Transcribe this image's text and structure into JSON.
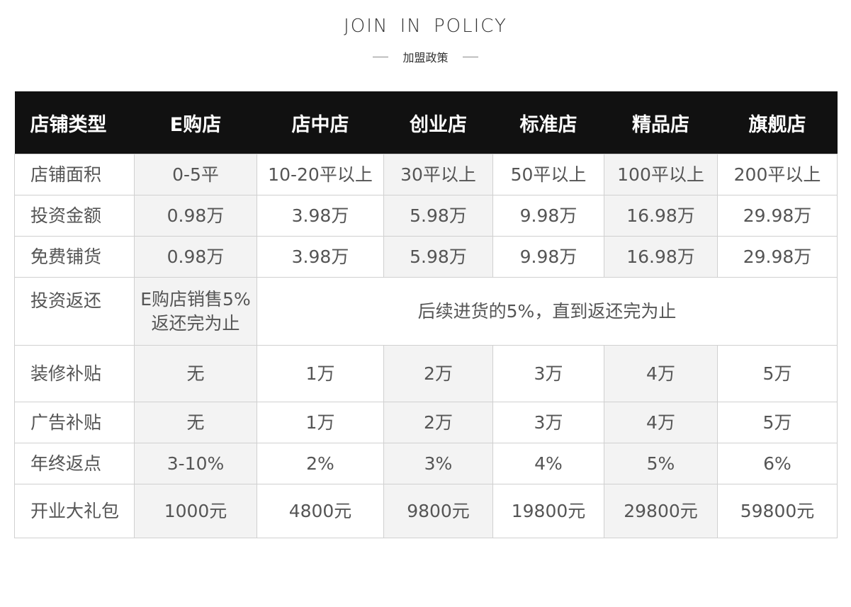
{
  "heading": {
    "title": "JOIN IN POLICY",
    "subtitle": "加盟政策"
  },
  "table": {
    "header": [
      "店铺类型",
      "E购店",
      "店中店",
      "创业店",
      "标准店",
      "精品店",
      "旗舰店"
    ],
    "rows": [
      {
        "label": "店铺面积",
        "cells": [
          "0-5平",
          "10-20平以上",
          "30平以上",
          "50平以上",
          "100平以上",
          "200平以上"
        ]
      },
      {
        "label": "投资金额",
        "cells": [
          "0.98万",
          "3.98万",
          "5.98万",
          "9.98万",
          "16.98万",
          "29.98万"
        ]
      },
      {
        "label": "免费铺货",
        "cells": [
          "0.98万",
          "3.98万",
          "5.98万",
          "9.98万",
          "16.98万",
          "29.98万"
        ]
      },
      {
        "label": "投资返还",
        "cells": [
          "E购店销售5%",
          "返还完为止",
          "后续进货的5%，直到返还完为止"
        ]
      },
      {
        "label": "装修补贴",
        "cells": [
          "无",
          "1万",
          "2万",
          "3万",
          "4万",
          "5万"
        ]
      },
      {
        "label": "广告补贴",
        "cells": [
          "无",
          "1万",
          "2万",
          "3万",
          "4万",
          "5万"
        ]
      },
      {
        "label": "年终返点",
        "cells": [
          "3-10%",
          "2%",
          "3%",
          "4%",
          "5%",
          "6%"
        ]
      },
      {
        "label": "开业大礼包",
        "cells": [
          "1000元",
          "4800元",
          "9800元",
          "19800元",
          "29800元",
          "59800元"
        ]
      }
    ]
  },
  "colors": {
    "header_bg": "#111111",
    "header_text": "#ffffff",
    "shaded_column_bg": "#f3f3f3",
    "cell_text": "#555555",
    "border": "#d0d0d0"
  }
}
